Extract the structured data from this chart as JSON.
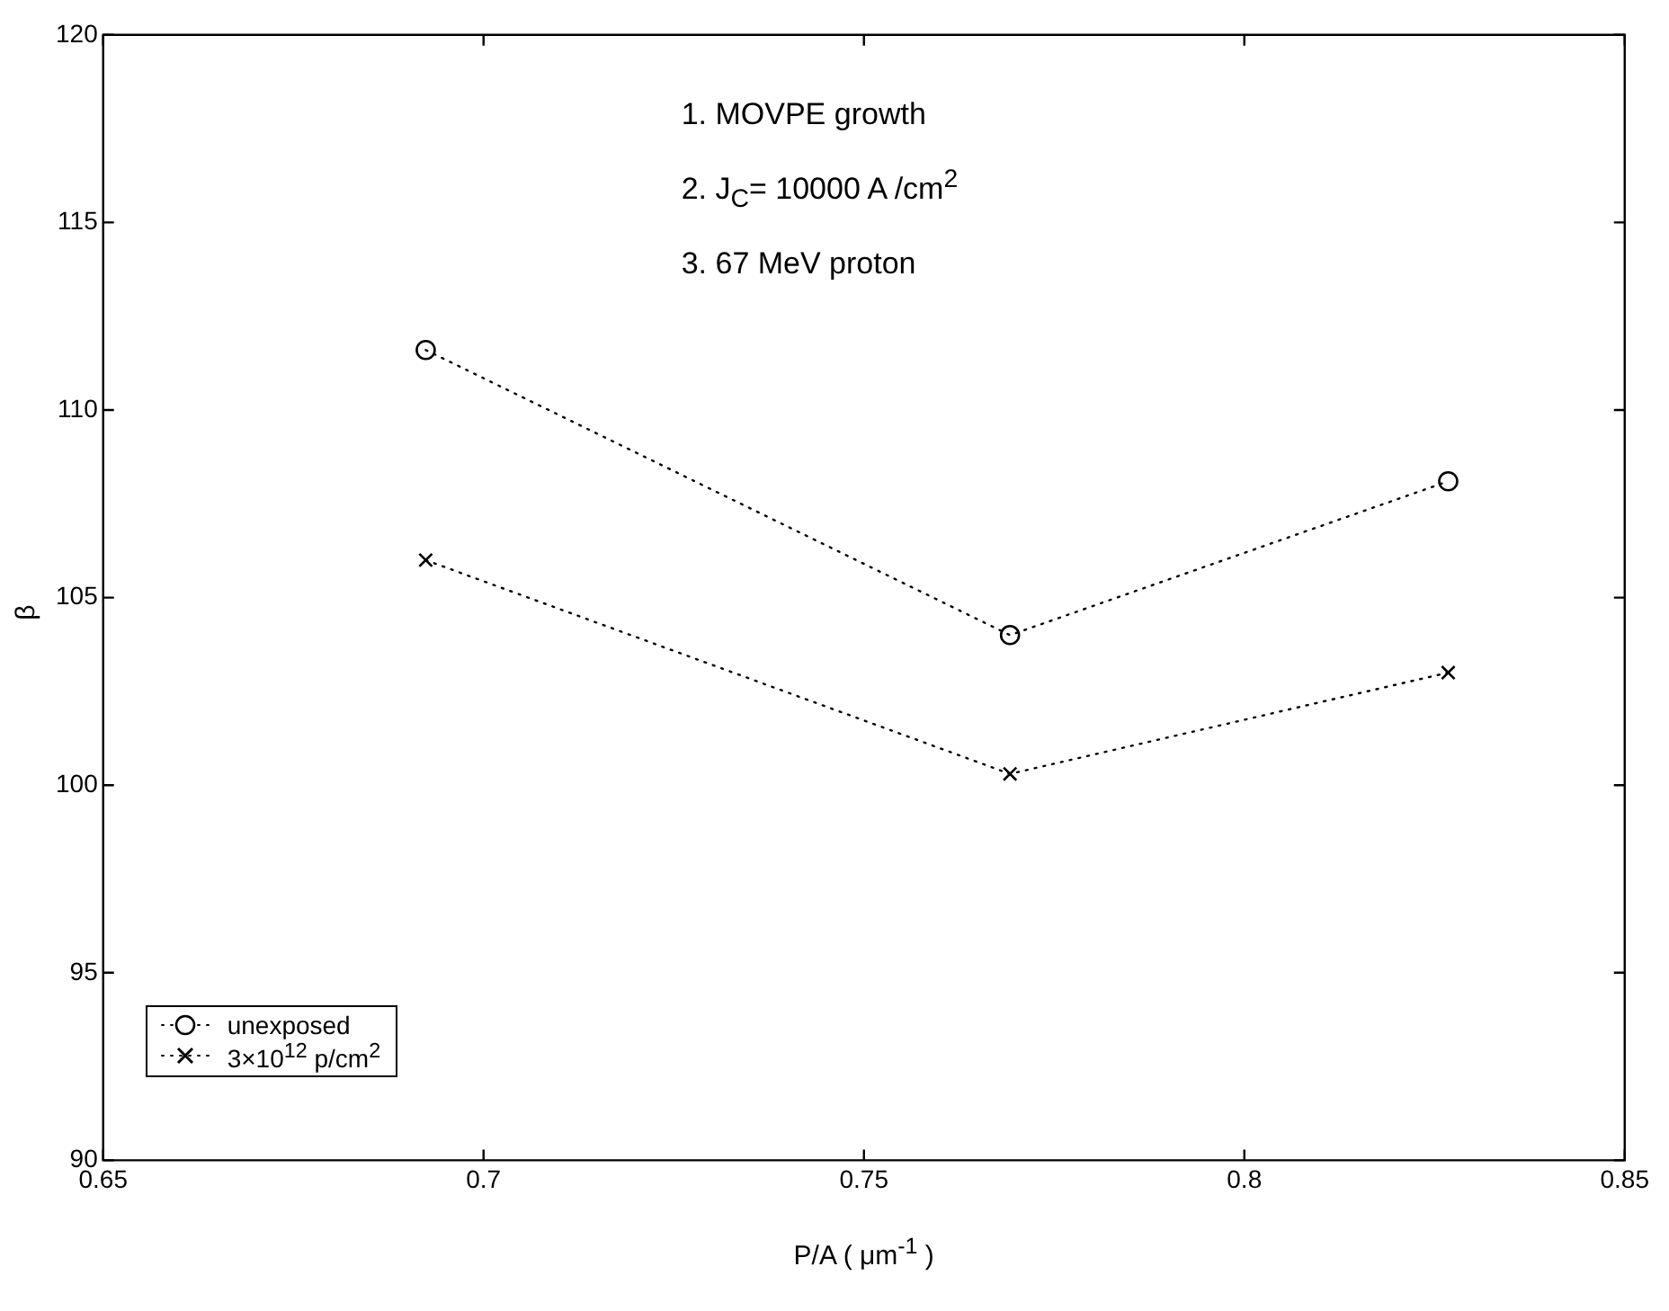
{
  "chart_data": {
    "type": "line",
    "xlabel": "P/A ( μm$^{-1}$ )",
    "ylabel": "β",
    "xlim": [
      0.65,
      0.85
    ],
    "xticks": [
      0.65,
      0.7,
      0.75,
      0.8,
      0.85
    ],
    "ylim": [
      90,
      120
    ],
    "yticks": [
      90,
      95,
      100,
      105,
      110,
      115,
      120
    ],
    "grid": false,
    "legend": "bottom left",
    "line_style": "dotted",
    "annotations": [
      "1. MOVPE growth",
      "2. J$_{C}$= 10000 A /cm$^{2}$",
      "3. 67 MeV proton"
    ],
    "series": [
      {
        "name": "unexposed",
        "color": "#000000",
        "marker": "circle",
        "x": [
          0.6924,
          0.7692,
          0.8268
        ],
        "values": [
          111.6,
          104,
          108.1
        ]
      },
      {
        "name": "3×10$^{12}$ p/cm$^{2}$",
        "color": "#000000",
        "marker": "cross",
        "x": [
          0.6924,
          0.7692,
          0.8268
        ],
        "values": [
          106,
          100.3,
          103
        ]
      }
    ]
  }
}
